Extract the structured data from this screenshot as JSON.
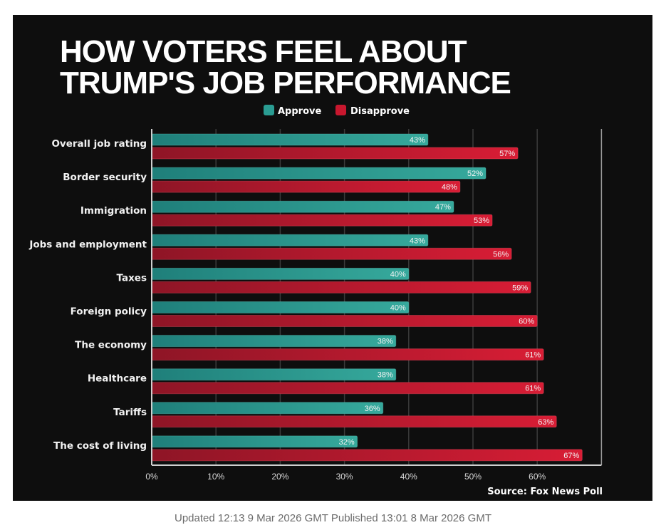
{
  "caption": "Updated 12:13 9 Mar 2026 GMT Published 13:01 8 Mar 2026 GMT",
  "colors": {
    "background": "#0e0e0e",
    "approve": "#2a9c92",
    "disapprove": "#c8172e",
    "gridline": "#3a3a3a",
    "axis": "#cfcfcf"
  },
  "chart_data": {
    "type": "bar",
    "orientation": "horizontal",
    "title_lines": [
      "HOW VOTERS FEEL ABOUT",
      "TRUMP'S JOB PERFORMANCE"
    ],
    "title": "HOW VOTERS FEEL ABOUT TRUMP'S JOB PERFORMANCE",
    "legend": [
      "Approve",
      "Disapprove"
    ],
    "legend_position": "top-center",
    "categories": [
      "Overall job rating",
      "Border security",
      "Immigration",
      "Jobs and employment",
      "Taxes",
      "Foreign policy",
      "The economy",
      "Healthcare",
      "Tariffs",
      "The cost of living"
    ],
    "series": [
      {
        "name": "Approve",
        "values": [
          43,
          52,
          47,
          43,
          40,
          40,
          38,
          38,
          36,
          32
        ]
      },
      {
        "name": "Disapprove",
        "values": [
          57,
          48,
          53,
          56,
          59,
          60,
          61,
          61,
          63,
          67
        ]
      }
    ],
    "value_suffix": "%",
    "x_ticks": [
      0,
      10,
      20,
      30,
      40,
      50,
      60
    ],
    "x_tick_labels": [
      "0%",
      "10%",
      "20%",
      "30%",
      "40%",
      "50%",
      "60%"
    ],
    "xlim": [
      0,
      70
    ],
    "xlabel": "",
    "ylabel": "",
    "grid": true,
    "source": "Source: Fox News Poll"
  }
}
